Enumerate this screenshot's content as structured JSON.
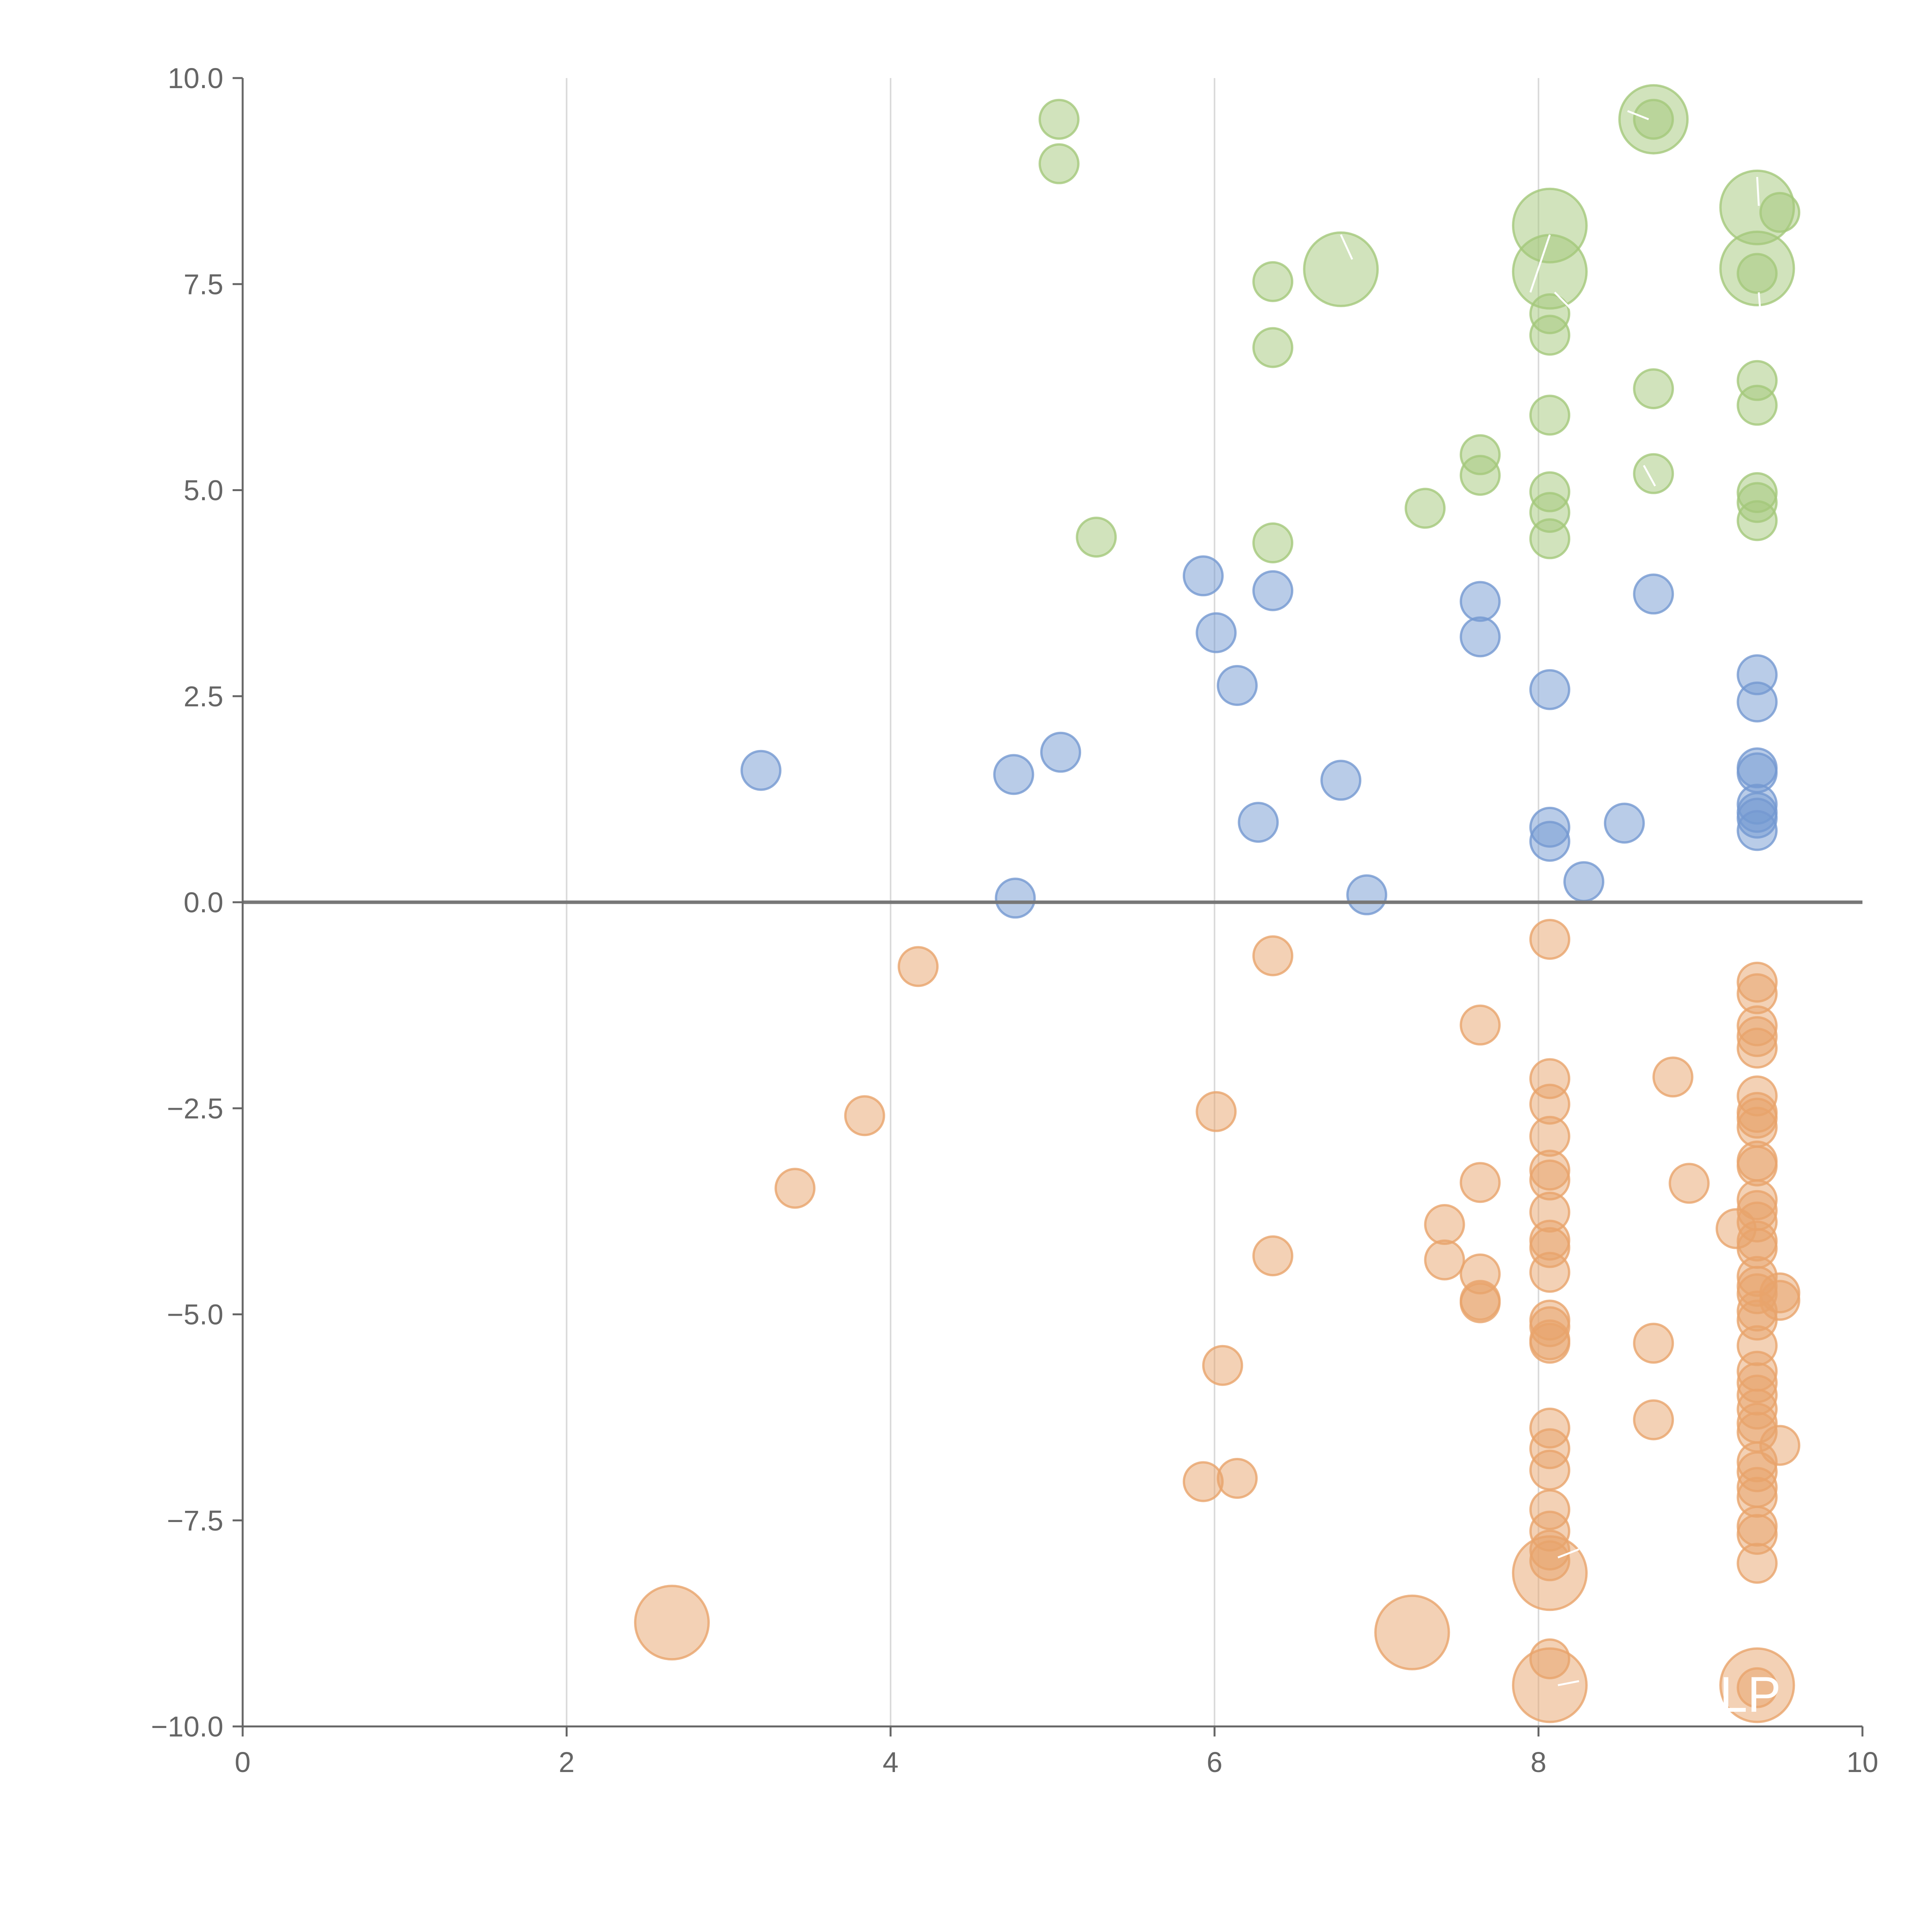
{
  "chart_data": {
    "type": "scatter",
    "title": "",
    "xlabel": "",
    "ylabel": "",
    "xlim": [
      0,
      10
    ],
    "ylim": [
      -10,
      10
    ],
    "x_ticks": [
      "0",
      "2",
      "4",
      "6",
      "8",
      "10"
    ],
    "x_tick_values": [
      0,
      2,
      4,
      6,
      8,
      10
    ],
    "y_ticks": [
      "10.0",
      "7.5",
      "5.0",
      "2.5",
      "0.0",
      "−2.5",
      "−5.0",
      "−7.5",
      "−10.0"
    ],
    "y_tick_values": [
      10,
      7.5,
      5,
      2.5,
      0,
      -2.5,
      -5,
      -7.5,
      -10
    ],
    "grid": "vertical",
    "reference_line": 0,
    "corner_label": "LP",
    "colors": {
      "green": "#a4c87a",
      "blue": "#7499d1",
      "orange": "#e8a46c"
    },
    "series": [
      {
        "name": "green",
        "points": [
          [
            5.04,
            9.5,
            1
          ],
          [
            5.04,
            8.96,
            1
          ],
          [
            5.27,
            4.43,
            1
          ],
          [
            6.36,
            7.53,
            1
          ],
          [
            6.36,
            6.73,
            1
          ],
          [
            6.36,
            4.36,
            1
          ],
          [
            6.78,
            7.68,
            3
          ],
          [
            7.3,
            4.78,
            1
          ],
          [
            7.64,
            5.43,
            1
          ],
          [
            7.64,
            5.18,
            1
          ],
          [
            8.07,
            8.21,
            3
          ],
          [
            8.07,
            7.65,
            3
          ],
          [
            8.07,
            7.14,
            1
          ],
          [
            8.07,
            6.88,
            1
          ],
          [
            8.07,
            5.91,
            1
          ],
          [
            8.07,
            4.98,
            1
          ],
          [
            8.07,
            4.73,
            1
          ],
          [
            8.07,
            4.41,
            1
          ],
          [
            8.71,
            9.5,
            2
          ],
          [
            8.71,
            9.5,
            1
          ],
          [
            8.71,
            6.23,
            1
          ],
          [
            8.71,
            5.2,
            1
          ],
          [
            9.35,
            8.43,
            3
          ],
          [
            9.35,
            7.69,
            3
          ],
          [
            9.35,
            7.63,
            1
          ],
          [
            9.49,
            8.37,
            1
          ],
          [
            9.35,
            6.33,
            1
          ],
          [
            9.35,
            6.03,
            1
          ],
          [
            9.35,
            4.97,
            1
          ],
          [
            9.35,
            4.85,
            1
          ],
          [
            9.35,
            4.63,
            1
          ]
        ]
      },
      {
        "name": "blue",
        "points": [
          [
            3.2,
            1.6,
            1
          ],
          [
            4.76,
            1.55,
            1
          ],
          [
            5.05,
            1.82,
            1
          ],
          [
            4.77,
            0.05,
            1
          ],
          [
            5.93,
            3.96,
            1
          ],
          [
            6.01,
            3.27,
            1
          ],
          [
            6.14,
            2.63,
            1
          ],
          [
            6.36,
            3.78,
            1
          ],
          [
            6.27,
            0.97,
            1
          ],
          [
            6.78,
            1.48,
            1
          ],
          [
            6.94,
            0.09,
            1
          ],
          [
            7.64,
            3.65,
            1
          ],
          [
            7.64,
            3.22,
            1
          ],
          [
            8.07,
            2.58,
            1
          ],
          [
            8.07,
            0.91,
            1
          ],
          [
            8.07,
            0.74,
            1
          ],
          [
            8.28,
            0.25,
            1
          ],
          [
            8.53,
            0.96,
            1
          ],
          [
            8.71,
            3.74,
            1
          ],
          [
            9.35,
            2.76,
            1
          ],
          [
            9.35,
            2.43,
            1
          ],
          [
            9.35,
            1.63,
            1
          ],
          [
            9.35,
            1.57,
            1
          ],
          [
            9.35,
            1.19,
            1
          ],
          [
            9.35,
            1.09,
            1
          ],
          [
            9.35,
            1.02,
            1
          ],
          [
            9.35,
            0.87,
            1
          ]
        ]
      },
      {
        "name": "orange",
        "points": [
          [
            4.17,
            -0.78,
            1
          ],
          [
            3.84,
            -2.59,
            1
          ],
          [
            3.41,
            -3.47,
            1
          ],
          [
            2.65,
            -8.74,
            3
          ],
          [
            6.01,
            -2.54,
            1
          ],
          [
            6.05,
            -5.62,
            1
          ],
          [
            5.93,
            -7.03,
            1
          ],
          [
            6.14,
            -6.99,
            1
          ],
          [
            6.36,
            -0.65,
            1
          ],
          [
            6.36,
            -4.29,
            1
          ],
          [
            7.22,
            -8.86,
            3
          ],
          [
            7.42,
            -3.91,
            1
          ],
          [
            7.42,
            -4.34,
            1
          ],
          [
            7.64,
            -1.49,
            1
          ],
          [
            7.64,
            -3.4,
            1
          ],
          [
            7.64,
            -4.51,
            1
          ],
          [
            7.64,
            -4.83,
            1
          ],
          [
            7.64,
            -4.86,
            1
          ],
          [
            8.07,
            -0.45,
            1
          ],
          [
            8.07,
            -2.14,
            1
          ],
          [
            8.07,
            -2.45,
            1
          ],
          [
            8.07,
            -2.84,
            1
          ],
          [
            8.07,
            -3.25,
            1
          ],
          [
            8.07,
            -3.37,
            1
          ],
          [
            8.07,
            -3.76,
            1
          ],
          [
            8.07,
            -4.1,
            1
          ],
          [
            8.07,
            -4.19,
            1
          ],
          [
            8.07,
            -4.49,
            1
          ],
          [
            8.07,
            -5.07,
            1
          ],
          [
            8.07,
            -5.15,
            1
          ],
          [
            8.07,
            -5.31,
            1
          ],
          [
            8.07,
            -5.35,
            1
          ],
          [
            8.07,
            -6.38,
            1
          ],
          [
            8.07,
            -6.63,
            1
          ],
          [
            8.07,
            -6.89,
            1
          ],
          [
            8.07,
            -7.37,
            1
          ],
          [
            8.07,
            -7.63,
            1
          ],
          [
            8.07,
            -7.86,
            1
          ],
          [
            8.07,
            -7.99,
            1
          ],
          [
            8.07,
            -8.14,
            3
          ],
          [
            8.07,
            -9.18,
            1
          ],
          [
            8.07,
            -9.5,
            3
          ],
          [
            8.71,
            -5.35,
            1
          ],
          [
            8.71,
            -6.28,
            1
          ],
          [
            8.83,
            -2.12,
            1
          ],
          [
            8.93,
            -3.41,
            1
          ],
          [
            9.22,
            -3.96,
            1
          ],
          [
            9.35,
            -0.97,
            1
          ],
          [
            9.35,
            -1.11,
            1
          ],
          [
            9.35,
            -1.5,
            1
          ],
          [
            9.35,
            -1.63,
            1
          ],
          [
            9.35,
            -1.77,
            1
          ],
          [
            9.35,
            -2.35,
            1
          ],
          [
            9.35,
            -2.55,
            1
          ],
          [
            9.35,
            -2.62,
            1
          ],
          [
            9.35,
            -2.73,
            1
          ],
          [
            9.35,
            -3.14,
            1
          ],
          [
            9.35,
            -3.2,
            1
          ],
          [
            9.35,
            -3.61,
            1
          ],
          [
            9.35,
            -3.74,
            1
          ],
          [
            9.35,
            -3.88,
            1
          ],
          [
            9.35,
            -4.11,
            1
          ],
          [
            9.35,
            -4.2,
            1
          ],
          [
            9.35,
            -4.54,
            1
          ],
          [
            9.35,
            -4.66,
            1
          ],
          [
            9.35,
            -4.75,
            1
          ],
          [
            9.35,
            -4.96,
            1
          ],
          [
            9.35,
            -5.07,
            1
          ],
          [
            9.35,
            -5.38,
            1
          ],
          [
            9.35,
            -5.69,
            1
          ],
          [
            9.35,
            -5.83,
            1
          ],
          [
            9.35,
            -5.98,
            1
          ],
          [
            9.35,
            -6.15,
            1
          ],
          [
            9.35,
            -6.32,
            1
          ],
          [
            9.35,
            -6.43,
            1
          ],
          [
            9.35,
            -6.79,
            1
          ],
          [
            9.35,
            -6.91,
            1
          ],
          [
            9.35,
            -7.1,
            1
          ],
          [
            9.35,
            -7.22,
            1
          ],
          [
            9.35,
            -7.57,
            1
          ],
          [
            9.35,
            -7.67,
            1
          ],
          [
            9.35,
            -8.02,
            1
          ],
          [
            9.49,
            -4.74,
            1
          ],
          [
            9.49,
            -4.83,
            1
          ],
          [
            9.49,
            -6.59,
            1
          ],
          [
            9.35,
            -9.5,
            3
          ],
          [
            9.35,
            -9.53,
            1
          ]
        ]
      }
    ]
  }
}
